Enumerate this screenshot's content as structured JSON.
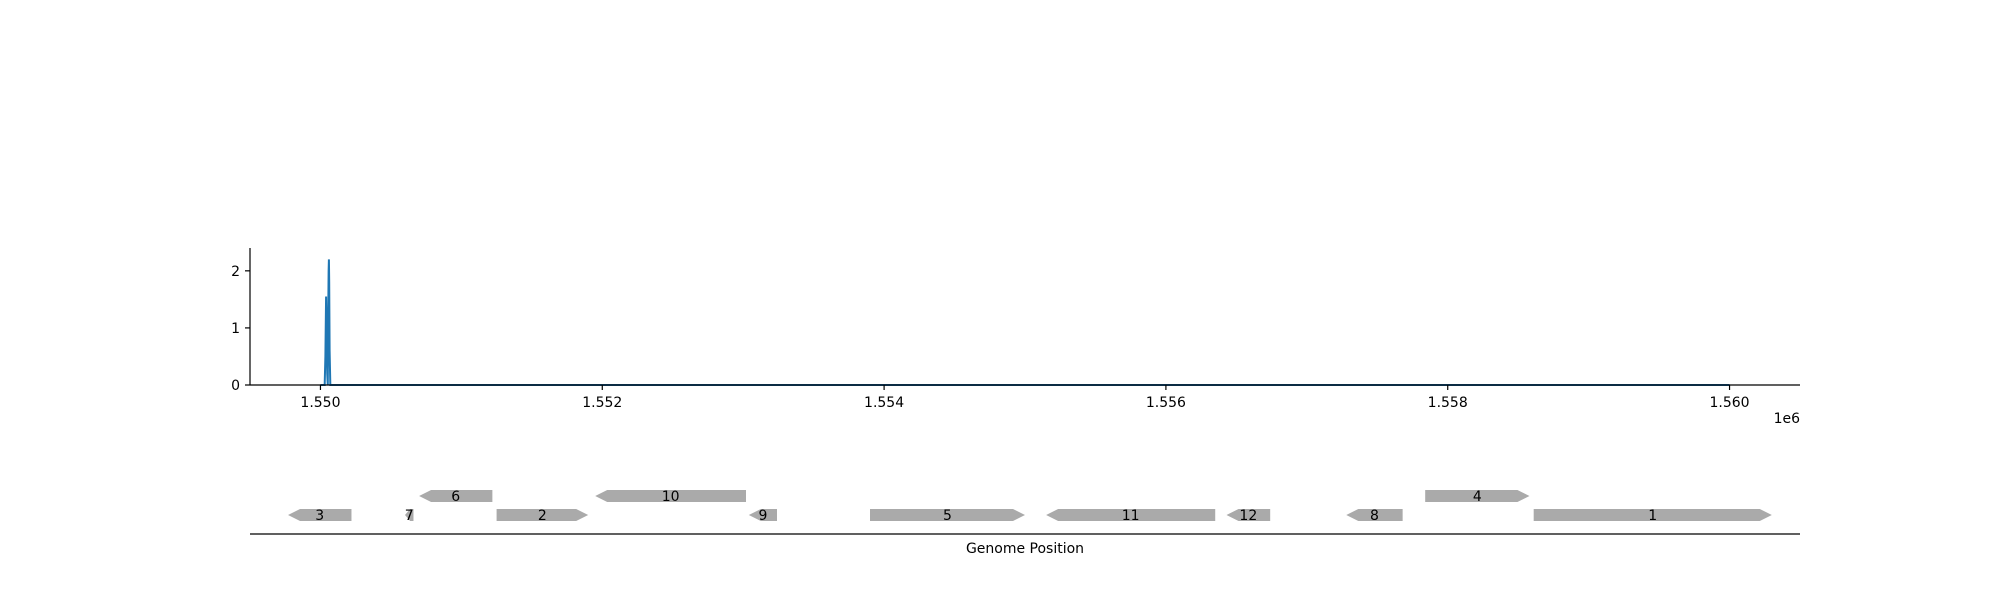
{
  "chart_data": [
    {
      "type": "line",
      "title": "",
      "xlabel": "",
      "ylabel": "",
      "x_offset_label": "1e6",
      "xlim": [
        1549500,
        1560500
      ],
      "ylim": [
        0,
        2.4
      ],
      "xticks": [
        {
          "value": 1550000,
          "label": "1.550"
        },
        {
          "value": 1552000,
          "label": "1.552"
        },
        {
          "value": 1554000,
          "label": "1.554"
        },
        {
          "value": 1556000,
          "label": "1.556"
        },
        {
          "value": 1558000,
          "label": "1.558"
        },
        {
          "value": 1560000,
          "label": "1.560"
        }
      ],
      "yticks": [
        {
          "value": 0,
          "label": "0"
        },
        {
          "value": 1,
          "label": "1"
        },
        {
          "value": 2,
          "label": "2"
        }
      ],
      "series": [
        {
          "color": "#1f77b4",
          "x": [
            1550000,
            1550030,
            1550035,
            1550040,
            1550045,
            1550048,
            1550052,
            1550055,
            1550058,
            1550060,
            1550062,
            1550065,
            1550070,
            1550075,
            1550080,
            1560000
          ],
          "y": [
            0,
            0,
            0.5,
            1.55,
            0.8,
            0.2,
            0,
            1.2,
            2.0,
            2.2,
            1.8,
            0.6,
            0,
            0,
            0,
            0
          ]
        }
      ],
      "grid": false,
      "legend": "none"
    },
    {
      "type": "gene-track",
      "xlabel": "Genome Position",
      "genes": [
        {
          "label": "3",
          "start": 1549770,
          "end": 1550220,
          "strand": "-",
          "row": 0
        },
        {
          "label": "7",
          "start": 1550600,
          "end": 1550660,
          "strand": "-",
          "row": 0
        },
        {
          "label": "6",
          "start": 1550700,
          "end": 1551220,
          "strand": "-",
          "row": 1
        },
        {
          "label": "2",
          "start": 1551250,
          "end": 1551900,
          "strand": "+",
          "row": 0
        },
        {
          "label": "10",
          "start": 1551950,
          "end": 1553020,
          "strand": "-",
          "row": 1
        },
        {
          "label": "9",
          "start": 1553040,
          "end": 1553240,
          "strand": "-",
          "row": 0
        },
        {
          "label": "5",
          "start": 1553900,
          "end": 1555000,
          "strand": "+",
          "row": 0
        },
        {
          "label": "11",
          "start": 1555150,
          "end": 1556350,
          "strand": "-",
          "row": 0
        },
        {
          "label": "12",
          "start": 1556430,
          "end": 1556740,
          "strand": "-",
          "row": 0
        },
        {
          "label": "8",
          "start": 1557280,
          "end": 1557680,
          "strand": "-",
          "row": 0
        },
        {
          "label": "4",
          "start": 1557840,
          "end": 1558580,
          "strand": "+",
          "row": 1
        },
        {
          "label": "1",
          "start": 1558610,
          "end": 1560300,
          "strand": "+",
          "row": 0
        }
      ],
      "gene_color": "#aaaaaa"
    }
  ]
}
